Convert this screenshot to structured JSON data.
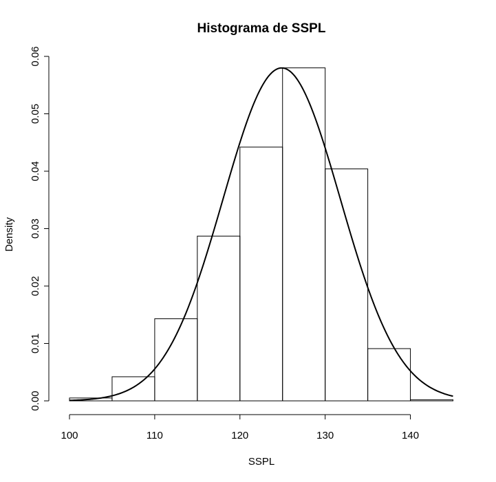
{
  "chart_data": {
    "type": "bar",
    "title": "Histograma de SSPL",
    "xlabel": "SSPL",
    "ylabel": "Density",
    "xlim": [
      100,
      145
    ],
    "ylim": [
      0,
      0.06
    ],
    "xticks": [
      100,
      110,
      120,
      130,
      140
    ],
    "xtick_labels": [
      "100",
      "110",
      "120",
      "130",
      "140"
    ],
    "yticks": [
      0,
      0.01,
      0.02,
      0.03,
      0.04,
      0.05,
      0.06
    ],
    "ytick_labels": [
      "0.00",
      "0.01",
      "0.02",
      "0.03",
      "0.04",
      "0.05",
      "0.06"
    ],
    "bins": [
      {
        "x0": 100,
        "x1": 105,
        "density": 0.0005
      },
      {
        "x0": 105,
        "x1": 110,
        "density": 0.0042
      },
      {
        "x0": 110,
        "x1": 115,
        "density": 0.0143
      },
      {
        "x0": 115,
        "x1": 120,
        "density": 0.0287
      },
      {
        "x0": 120,
        "x1": 125,
        "density": 0.0442
      },
      {
        "x0": 125,
        "x1": 130,
        "density": 0.058
      },
      {
        "x0": 130,
        "x1": 135,
        "density": 0.0404
      },
      {
        "x0": 135,
        "x1": 140,
        "density": 0.0091
      },
      {
        "x0": 140,
        "x1": 145,
        "density": 0.0002
      }
    ],
    "density_curve": {
      "type": "normal",
      "mean": 124.9,
      "sd": 6.88,
      "x_range": [
        100,
        145
      ]
    },
    "grid": false,
    "legend": "none"
  }
}
